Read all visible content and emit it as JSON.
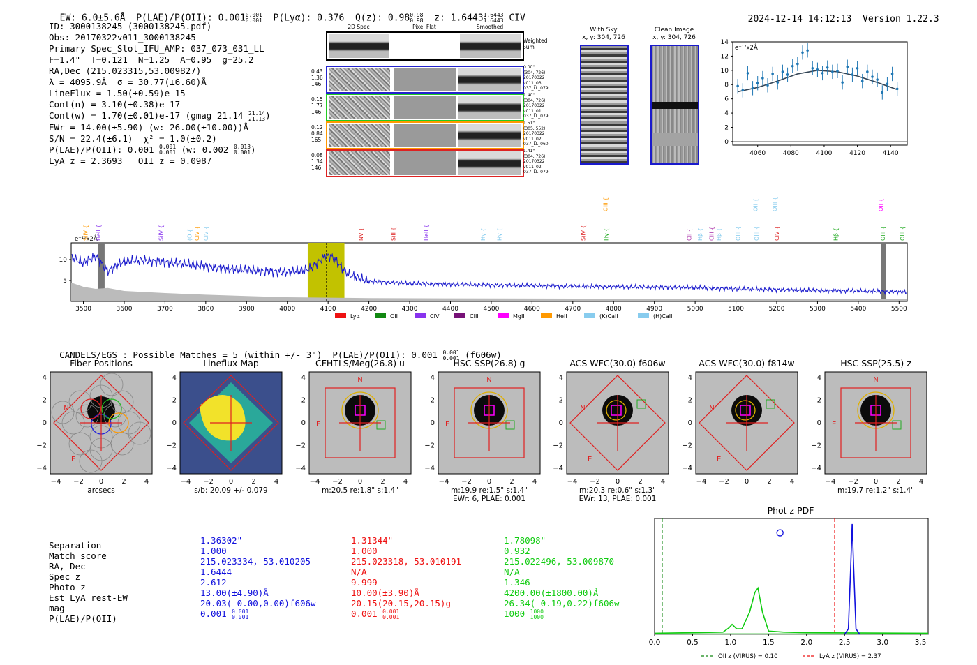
{
  "header": {
    "ew": "EW: 6.0±5.6Å",
    "plae_label": "P(LAE)/P(OII): 0.001",
    "plae_hi": "0.001",
    "plae_lo": "0.001",
    "plya": "P(Lyα): 0.376",
    "qz": "Q(z): 0.98",
    "qz_hi": "0.98",
    "qz_lo": "0.98",
    "z": "z: 1.6443",
    "z_hi": "1.6443",
    "z_lo": "1.6443",
    "line": "CIV",
    "timestamp": "2024-12-14 14:12:13",
    "version": "Version 1.22.3"
  },
  "info": {
    "id": "ID: 3000138245 (3000138245.pdf)",
    "obs": "Obs: 20170322v011_3000138245",
    "slot": "Primary Spec_Slot_IFU_AMP: 037_073_031_LL",
    "params": "F=1.4\"  T=0.121  N=1.25  A=0.95  g=25.2",
    "radec": "RA,Dec (215.023315,53.009827)",
    "lambda": "λ = 4095.9Å  σ = 30.77(±6.60)Å",
    "lineflux": "LineFlux = 1.50(±0.59)e-15",
    "contn": "Cont(n) = 3.10(±0.38)e-17",
    "contw": "Cont(w) = 1.70(±0.01)e-17 (gmag 21.14",
    "contw_hi": "21.14",
    "contw_lo": "21.13",
    "ewr": "EWr = 14.00(±5.90) (w: 26.00(±10.00))Å",
    "sn": "S/N = 22.4(±6.1)  χ² = 1.0(±0.2)",
    "plae": "P(LAE)/P(OII): 0.001",
    "plae_hi": "0.001",
    "plae_lo": "0.001",
    "plae_w": "(w: 0.002",
    "plae_w_hi": "0.013",
    "plae_w_lo": "0.001",
    "lyaz": "LyA z = 2.3693   OII z = 0.0987"
  },
  "cutouts": {
    "col_headers": [
      "2D Spec",
      "Pixel Flat",
      "Smoothed"
    ],
    "weighted_sum": "Weighted\nSum",
    "rows": [
      {
        "left": "0.43\n1.36\n146",
        "right": "0.00\"\n(304, 726)\n20170322\nv011_03\n037_LL_079",
        "color": "#2222cc"
      },
      {
        "left": "0.15\n1.77\n146",
        "right": "1.40\"\n(304, 726)\n20170322\nv011_01\n037_LL_079",
        "color": "#22cc22"
      },
      {
        "left": "0.12\n0.84\n165",
        "right": "1.51\"\n(305, 552)\n20170322\nv011_02\n037_LL_060",
        "color": "#ff9900"
      },
      {
        "left": "0.08\n1.34\n146",
        "right": "1.41\"\n(304, 726)\n20170322\nv011_02\n037_LL_079",
        "color": "#dd2222"
      }
    ],
    "with_sky": "With Sky",
    "with_sky_xy": "x, y: 304, 726",
    "clean": "Clean Image",
    "clean_xy": "x, y: 304, 726"
  },
  "chart_data": [
    {
      "type": "line",
      "id": "zoom-fit",
      "ylabel_note": "e⁻¹⁷x2Å",
      "xlim": [
        4045,
        4150
      ],
      "ylim": [
        -0.5,
        14
      ],
      "xticks": [
        4060,
        4080,
        4100,
        4120,
        4140
      ],
      "yticks": [
        0,
        2,
        4,
        6,
        8,
        10,
        12,
        14
      ],
      "points_x": [
        4048,
        4051,
        4054,
        4057,
        4060,
        4063,
        4066,
        4069,
        4072,
        4075,
        4078,
        4081,
        4084,
        4087,
        4090,
        4093,
        4096,
        4099,
        4102,
        4105,
        4108,
        4111,
        4114,
        4117,
        4120,
        4123,
        4126,
        4129,
        4132,
        4135,
        4138,
        4141,
        4144
      ],
      "points_y": [
        7.8,
        7.2,
        9.6,
        7.5,
        8.2,
        8.9,
        7.9,
        9.5,
        8.3,
        9.8,
        9.4,
        10.6,
        10.9,
        12.5,
        12.8,
        10.3,
        10.1,
        9.6,
        10.4,
        9.8,
        9.9,
        8.3,
        10.5,
        9.4,
        10.3,
        8.5,
        9.8,
        9.1,
        8.7,
        6.9,
        8.1,
        9.5,
        7.4
      ],
      "fit_x": [
        4048,
        4060,
        4072,
        4084,
        4096,
        4108,
        4120,
        4132,
        4144
      ],
      "fit_y": [
        7.0,
        7.6,
        8.5,
        9.5,
        10.0,
        9.8,
        9.2,
        8.3,
        7.3
      ]
    },
    {
      "type": "line",
      "id": "full-spectrum",
      "ylabel_note": "e⁻¹⁷x2Å",
      "xlim": [
        3470,
        5520
      ],
      "ylim": [
        0,
        14
      ],
      "xticks": [
        3500,
        3600,
        3700,
        3800,
        3900,
        4000,
        4100,
        4200,
        4300,
        4400,
        4500,
        4600,
        4700,
        4800,
        4900,
        5000,
        5100,
        5200,
        5300,
        5400,
        5500
      ],
      "yticks": [
        5,
        10
      ],
      "spectrum_x": [
        3470,
        3500,
        3530,
        3560,
        3600,
        3650,
        3700,
        3750,
        3800,
        3850,
        3900,
        3950,
        4000,
        4040,
        4060,
        4080,
        4095,
        4110,
        4130,
        4150,
        4200,
        4300,
        4400,
        4500,
        4600,
        4700,
        4800,
        4900,
        5000,
        5100,
        5200,
        5300,
        5400,
        5500,
        5520
      ],
      "spectrum_y": [
        10.5,
        9.2,
        10.8,
        7.2,
        9.6,
        9.8,
        9.4,
        8.9,
        8.4,
        7.8,
        7.5,
        7.2,
        7.0,
        7.4,
        8.0,
        9.8,
        11.0,
        10.6,
        8.5,
        6.4,
        4.8,
        4.3,
        4.1,
        3.9,
        3.8,
        3.6,
        3.5,
        3.4,
        3.3,
        3.0,
        2.8,
        2.6,
        2.5,
        2.3,
        2.2
      ],
      "error_x": [
        3470,
        3500,
        3530,
        3560,
        3600,
        3700,
        3800,
        3900,
        4000,
        4200,
        4500,
        5000,
        5520
      ],
      "error_y": [
        4.5,
        3.5,
        3.0,
        3.2,
        2.5,
        2.0,
        1.6,
        1.3,
        1.0,
        0.8,
        0.7,
        0.6,
        0.5
      ],
      "highlight_range": [
        4050,
        4140
      ],
      "center_line": 4096,
      "masked_ranges": [
        [
          3535,
          3552
        ],
        [
          5455,
          5468
        ]
      ],
      "line_labels": [
        {
          "label": "SiIV",
          "color": "#ff9900",
          "x": 3505,
          "row": 0
        },
        {
          "label": "HeII",
          "color": "#8833ee",
          "x": 3537,
          "row": 0
        },
        {
          "label": "SiIV",
          "color": "#8833ee",
          "x": 3690,
          "row": 0
        },
        {
          "label": "(O",
          "color": "#88ccee",
          "x": 3760,
          "row": 0
        },
        {
          "label": "CIV",
          "color": "#ff9900",
          "x": 3778,
          "row": 0
        },
        {
          "label": "CIV",
          "color": "#88ccee",
          "x": 3800,
          "row": 0
        },
        {
          "label": "NV",
          "color": "#dd2222",
          "x": 4180,
          "row": 0
        },
        {
          "label": "SiII",
          "color": "#dd2222",
          "x": 4260,
          "row": 0
        },
        {
          "label": "HeII",
          "color": "#8833ee",
          "x": 4340,
          "row": 0
        },
        {
          "label": "Hγ",
          "color": "#88ccee",
          "x": 4480,
          "row": 0
        },
        {
          "label": "Hγ",
          "color": "#88ccee",
          "x": 4520,
          "row": 0
        },
        {
          "label": "SiIV",
          "color": "#dd2222",
          "x": 4725,
          "row": 0
        },
        {
          "label": "CIII",
          "color": "#ff9900",
          "x": 4780,
          "row": 1
        },
        {
          "label": "Hγ",
          "color": "#22aa22",
          "x": 4782,
          "row": 0
        },
        {
          "label": "CII",
          "color": "#aa33aa",
          "x": 4985,
          "row": 0
        },
        {
          "label": "Hβ",
          "color": "#88ccee",
          "x": 5012,
          "row": 0
        },
        {
          "label": "CIII",
          "color": "#aa33aa",
          "x": 5040,
          "row": 0
        },
        {
          "label": "Hβ",
          "color": "#88ccee",
          "x": 5058,
          "row": 0
        },
        {
          "label": "OIII",
          "color": "#88ccee",
          "x": 5105,
          "row": 0
        },
        {
          "label": "OII",
          "color": "#88ccee",
          "x": 5148,
          "row": 1
        },
        {
          "label": "OIII",
          "color": "#88ccee",
          "x": 5150,
          "row": 0
        },
        {
          "label": "OIII",
          "color": "#88ccee",
          "x": 5195,
          "row": 1
        },
        {
          "label": "CIV",
          "color": "#dd2222",
          "x": 5200,
          "row": 0
        },
        {
          "label": "Hβ",
          "color": "#22aa22",
          "x": 5345,
          "row": 0
        },
        {
          "label": "OII",
          "color": "#ff00ff",
          "x": 5455,
          "row": 1
        },
        {
          "label": "OIII",
          "color": "#22aa22",
          "x": 5460,
          "row": 0
        },
        {
          "label": "OIII",
          "color": "#22aa22",
          "x": 5508,
          "row": 0
        }
      ],
      "legend": [
        {
          "label": "Lyα",
          "color": "#ee1111"
        },
        {
          "label": "OII",
          "color": "#118811"
        },
        {
          "label": "CIV",
          "color": "#8833ee"
        },
        {
          "label": "CIII",
          "color": "#771177"
        },
        {
          "label": "MgII",
          "color": "#ff00ff"
        },
        {
          "label": "HeII",
          "color": "#ff9900"
        },
        {
          "label": "(K)CaII",
          "color": "#88ccee"
        },
        {
          "label": "(H)CaII",
          "color": "#88ccee"
        }
      ]
    },
    {
      "type": "line",
      "id": "phot-z-pdf",
      "title": "Phot z PDF",
      "xlim": [
        0,
        3.6
      ],
      "ylim": [
        0,
        1.05
      ],
      "xticks": [
        0.0,
        0.5,
        1.0,
        1.5,
        2.0,
        2.5,
        3.0,
        3.5
      ],
      "oii_z": 0.1,
      "lya_z": 2.37,
      "spec_z_marker": 1.65,
      "green_x": [
        0,
        0.9,
        0.98,
        1.02,
        1.08,
        1.15,
        1.25,
        1.32,
        1.36,
        1.42,
        1.5,
        1.7,
        2.0,
        3.6
      ],
      "green_y": [
        0.01,
        0.02,
        0.06,
        0.09,
        0.05,
        0.05,
        0.2,
        0.38,
        0.42,
        0.2,
        0.03,
        0.02,
        0.015,
        0.01
      ],
      "blue_x": [
        2.5,
        2.55,
        2.58,
        2.6,
        2.62,
        2.65,
        2.7
      ],
      "blue_y": [
        0.0,
        0.05,
        0.6,
        1.0,
        0.6,
        0.05,
        0.0
      ],
      "legend": [
        {
          "label": "OII z (VIRUS) = 0.10",
          "color": "#118811"
        },
        {
          "label": "LyA z (VIRUS) = 2.37",
          "color": "#ee1111"
        }
      ]
    }
  ],
  "catalog": {
    "line": "CANDELS/EGS : Possible Matches = 5 (within +/- 3\")  P(LAE)/P(OII): 0.001",
    "plae_hi": "0.001",
    "plae_lo": "0.001",
    "filter": "(f606w)"
  },
  "thumbnails": [
    {
      "title": "Fiber Positions",
      "xlabel": "arcsecs",
      "xlabel2": "",
      "kind": "fiber"
    },
    {
      "title": "Lineflux Map",
      "xlabel": "s/b: 20.09 +/- 0.079",
      "xlabel2": "",
      "kind": "flux"
    },
    {
      "title": "CFHTLS/Meg(26.8) u",
      "xlabel": "m:20.5  re:1.8\"  s:1.4\"",
      "xlabel2": "",
      "kind": "square"
    },
    {
      "title": "HSC SSP(26.8) g",
      "xlabel": "m:19.9  re:1.5\"  s:1.4\"",
      "xlabel2": "EWr: 6, PLAE: 0.001",
      "kind": "square"
    },
    {
      "title": "ACS WFC(30.0) f606w",
      "xlabel": "m:20.3  re:0.6\"  s:1.3\"",
      "xlabel2": "EWr: 13, PLAE: 0.001",
      "kind": "diamond"
    },
    {
      "title": "ACS WFC(30.0) f814w",
      "xlabel": "",
      "xlabel2": "",
      "kind": "diamond"
    },
    {
      "title": "HSC SSP(25.5) z",
      "xlabel": "m:19.7  re:1.2\"  s:1.4\"",
      "xlabel2": "",
      "kind": "square"
    }
  ],
  "thumb_ticks": [
    "4",
    "2",
    "0",
    "−2",
    "−4"
  ],
  "thumb_xticks": [
    "−4",
    "−2",
    "0",
    "2",
    "4"
  ],
  "compass": {
    "n": "N",
    "e": "E"
  },
  "matches": {
    "labels": [
      "Separation",
      "Match score",
      "RA, Dec",
      "Spec z",
      "Photo z",
      "Est LyA rest-EW",
      "mag",
      "P(LAE)/P(OII)"
    ],
    "columns": [
      {
        "color": "#1111dd",
        "values": [
          "1.36302\"",
          "1.000",
          "215.023334, 53.010205",
          "1.6444",
          "2.612",
          "13.00(±4.90)Å",
          "20.03(-0.00,0.00)f606w"
        ],
        "plae": "0.001",
        "plae_hi": "0.001",
        "plae_lo": "0.001"
      },
      {
        "color": "#ee1111",
        "values": [
          "1.31344\"",
          "1.000",
          "215.023318, 53.010191",
          "N/A",
          "9.999",
          "10.00(±3.90)Å",
          "20.15(20.15,20.15)g"
        ],
        "plae": "0.001",
        "plae_hi": "0.001",
        "plae_lo": "0.001"
      },
      {
        "color": "#11cc11",
        "values": [
          "1.78098\"",
          "0.932",
          "215.022496, 53.009870",
          "N/A",
          "1.346",
          "4200.00(±1800.00)Å",
          "26.34(-0.19,0.22)f606w"
        ],
        "plae": "1000",
        "plae_hi": "1000",
        "plae_lo": "1000"
      }
    ]
  }
}
